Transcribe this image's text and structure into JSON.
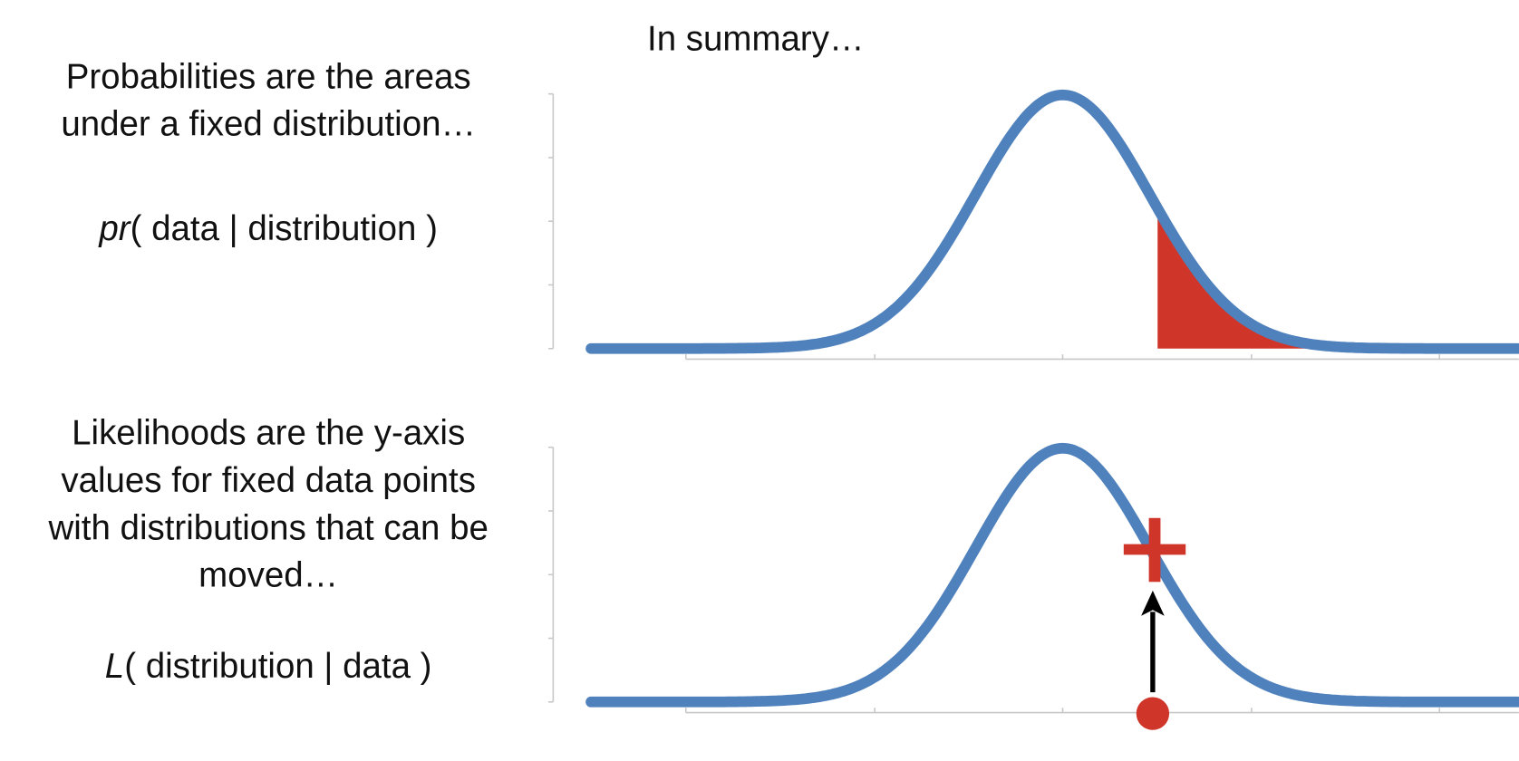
{
  "title": "In summary…",
  "probability": {
    "lines": [
      "Probabilities are the areas",
      "under a fixed distribution…"
    ],
    "formula": {
      "symbol": "pr",
      "text": "( data | distribution )"
    }
  },
  "likelihood": {
    "lines": [
      "Likelihoods are the y-axis",
      "values for fixed data points",
      "with distributions that can be",
      "moved…"
    ],
    "formula": {
      "symbol": "L",
      "text": "( distribution | data )"
    }
  }
}
